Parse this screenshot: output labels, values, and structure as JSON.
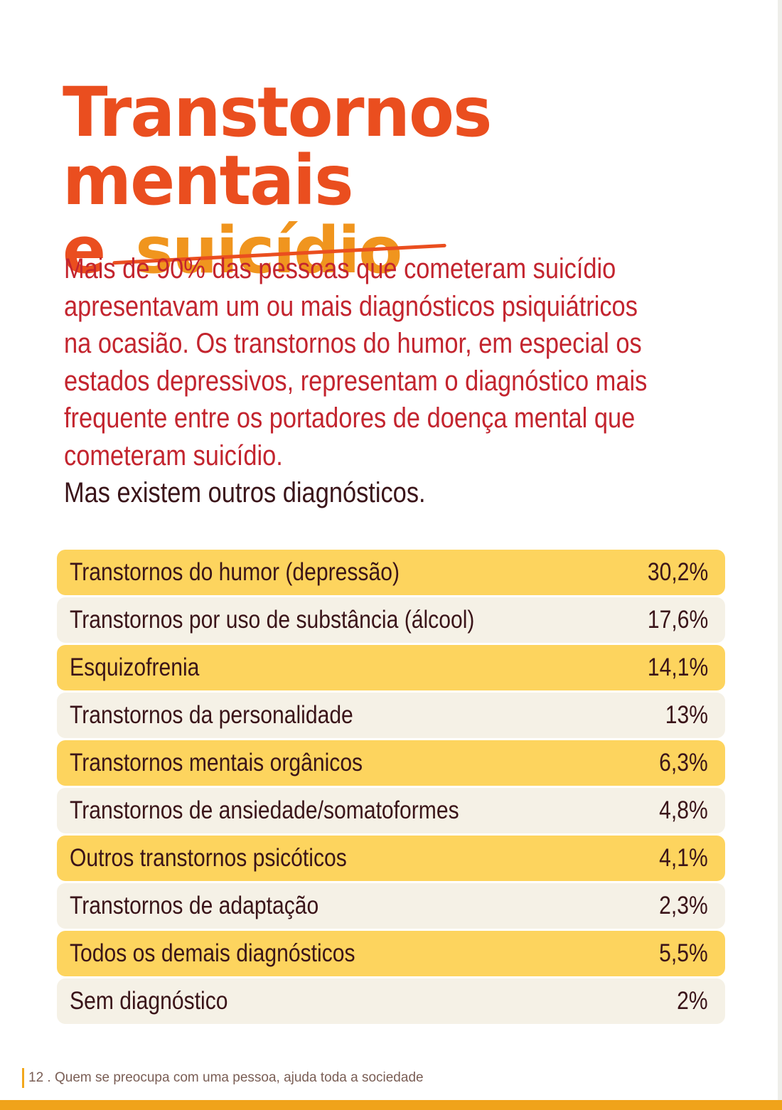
{
  "title": {
    "line1": "Transtornos mentais",
    "line2_prefix": "e",
    "line2_word": "suicídio"
  },
  "intro": {
    "paragraph": "Mais de 90% das pessoas que cometeram suicídio apresentavam um ou mais diagnósticos psiquiátricos na ocasião. Os transtornos do humor, em especial os estados depressivos, representam o diagnóstico mais frequente entre os portadores de doença mental que cometeram suicídio.",
    "closing": "Mas existem outros diagnósticos."
  },
  "table": {
    "rows": [
      {
        "label": "Transtornos do humor (depressão)",
        "value": "30,2%"
      },
      {
        "label": "Transtornos por uso de substância (álcool)",
        "value": "17,6%"
      },
      {
        "label": "Esquizofrenia",
        "value": "14,1%"
      },
      {
        "label": "Transtornos da personalidade",
        "value": "13%"
      },
      {
        "label": "Transtornos mentais orgânicos",
        "value": "6,3%"
      },
      {
        "label": "Transtornos de ansiedade/somatoformes",
        "value": "4,8%"
      },
      {
        "label": "Outros transtornos psicóticos",
        "value": "4,1%"
      },
      {
        "label": "Transtornos de adaptação",
        "value": "2,3%"
      },
      {
        "label": "Todos os demais diagnósticos",
        "value": "5,5%"
      },
      {
        "label": "Sem diagnóstico",
        "value": "2%"
      }
    ]
  },
  "footer": {
    "text": "12 . Quem se preocupa com uma pessoa, ajuda toda a sociedade"
  },
  "colors": {
    "title_red": "#ea4e1f",
    "title_orange": "#f0951e",
    "intro_red": "#c3242e",
    "dark_text": "#3a1419",
    "row_yellow": "#fdd45e",
    "row_cream": "#f5f1e6",
    "footer_bar": "#f0a31a"
  }
}
